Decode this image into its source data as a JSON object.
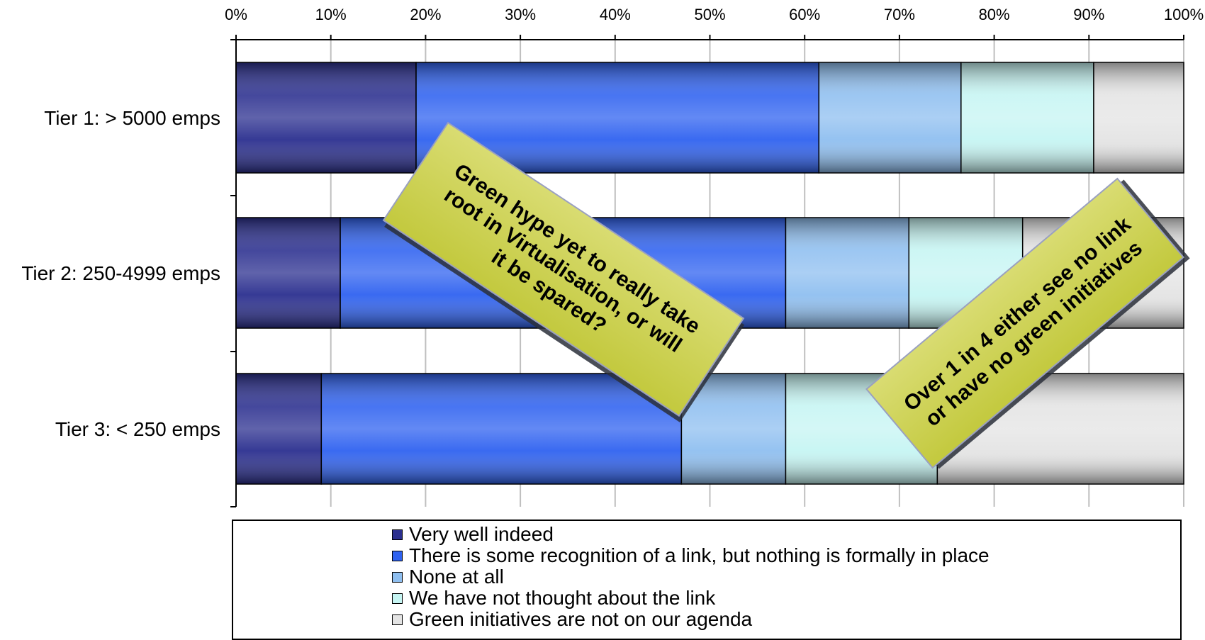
{
  "chart_data": {
    "type": "bar",
    "orientation": "horizontal",
    "stacked": "percent",
    "categories": [
      "Tier 1: > 5000 emps",
      "Tier 2: 250-4999 emps",
      "Tier 3: < 250 emps"
    ],
    "x_ticks": [
      "0%",
      "10%",
      "20%",
      "30%",
      "40%",
      "50%",
      "60%",
      "70%",
      "80%",
      "90%",
      "100%"
    ],
    "xlim": [
      0,
      100
    ],
    "x_axis_position": "top",
    "grid": true,
    "legend_position": "bottom",
    "series": [
      {
        "name": "Very well indeed",
        "values": [
          19,
          11,
          9
        ],
        "color": "#2b2f8f"
      },
      {
        "name": "There is some recognition of a link, but nothing is formally in place",
        "values": [
          42.5,
          47,
          38
        ],
        "color": "#2f62f0"
      },
      {
        "name": "None at all",
        "values": [
          15,
          13,
          11
        ],
        "color": "#8fbff0"
      },
      {
        "name": "We have not thought about the link",
        "values": [
          14,
          12,
          16
        ],
        "color": "#c6f5f3"
      },
      {
        "name": "Green initiatives are not on our agenda",
        "values": [
          9.5,
          17,
          26
        ],
        "color": "#e4e4e4"
      }
    ],
    "annotations": [
      {
        "text": [
          "Green hype yet to really take",
          "root in Virtualisation, or will",
          "it be spared?"
        ]
      },
      {
        "text": [
          "Over 1 in 4  either see no link",
          "or  have no green initiatives"
        ]
      }
    ]
  }
}
